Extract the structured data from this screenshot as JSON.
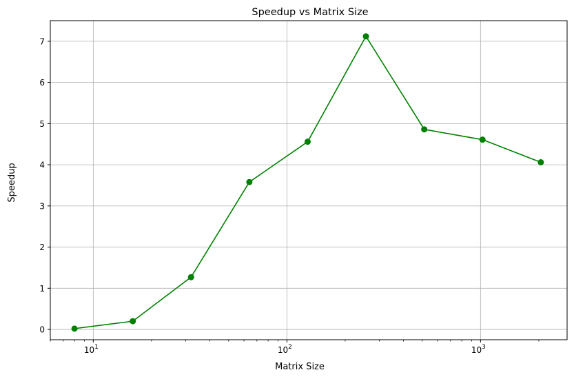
{
  "chart_data": {
    "type": "line",
    "title": "Speedup vs Matrix Size",
    "xlabel": "Matrix Size",
    "ylabel": "Speedup",
    "x_scale": "log",
    "x": [
      8,
      16,
      32,
      64,
      128,
      256,
      512,
      1024,
      2048
    ],
    "series": [
      {
        "values": [
          0.02,
          0.2,
          1.27,
          3.58,
          4.56,
          7.12,
          4.86,
          4.61,
          4.06
        ],
        "color": "#008000",
        "marker": "circle"
      }
    ],
    "xlim": [
      6,
      2800
    ],
    "ylim": [
      -0.25,
      7.5
    ],
    "y_ticks": [
      0,
      1,
      2,
      3,
      4,
      5,
      6,
      7
    ],
    "x_ticks": [
      {
        "value": 10,
        "base": "10",
        "exp": "1"
      },
      {
        "value": 100,
        "base": "10",
        "exp": "2"
      },
      {
        "value": 1000,
        "base": "10",
        "exp": "3"
      }
    ],
    "grid": true,
    "legend": "none"
  }
}
